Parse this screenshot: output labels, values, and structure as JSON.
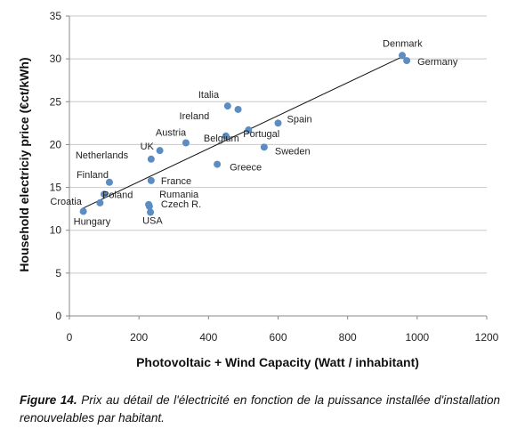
{
  "chart_data": {
    "type": "scatter",
    "xlabel": "Photovoltaic + Wind Capacity (Watt / inhabitant)",
    "ylabel": "Household electriciy price (€ct/kWh)",
    "xlim": [
      0,
      1200
    ],
    "ylim": [
      0,
      35
    ],
    "xticks": [
      0,
      200,
      400,
      600,
      800,
      1000,
      1200
    ],
    "yticks": [
      0,
      5,
      10,
      15,
      20,
      25,
      30,
      35
    ],
    "grid": "horizontal",
    "point_color": "#5b8cc2",
    "trendline": {
      "x": [
        35,
        965
      ],
      "y": [
        12.5,
        30.4
      ]
    },
    "points": [
      {
        "label": "Denmark",
        "x": 957,
        "y": 30.4
      },
      {
        "label": "Germany",
        "x": 970,
        "y": 29.8
      },
      {
        "label": "Italia",
        "x": 455,
        "y": 24.5
      },
      {
        "label": "Ireland",
        "x": 485,
        "y": 24.1
      },
      {
        "label": "Spain",
        "x": 600,
        "y": 22.5
      },
      {
        "label": "Portugal",
        "x": 515,
        "y": 21.7
      },
      {
        "label": "Belgium",
        "x": 450,
        "y": 21.0
      },
      {
        "label": "Sweden",
        "x": 560,
        "y": 19.7
      },
      {
        "label": "Austria",
        "x": 335,
        "y": 20.2
      },
      {
        "label": "UK",
        "x": 260,
        "y": 19.3
      },
      {
        "label": "Netherlands",
        "x": 235,
        "y": 18.3
      },
      {
        "label": "Greece",
        "x": 425,
        "y": 17.7
      },
      {
        "label": "Finland",
        "x": 115,
        "y": 15.6
      },
      {
        "label": "France",
        "x": 235,
        "y": 15.8
      },
      {
        "label": "Poland",
        "x": 100,
        "y": 14.2
      },
      {
        "label": "Rumania",
        "x": 228,
        "y": 13.0
      },
      {
        "label": "Czech R.",
        "x": 230,
        "y": 12.8
      },
      {
        "label": "Croatia",
        "x": 88,
        "y": 13.2
      },
      {
        "label": "USA",
        "x": 233,
        "y": 12.1
      },
      {
        "label": "Hungary",
        "x": 40,
        "y": 12.2
      }
    ]
  },
  "caption": {
    "figure_label": "Figure 14.",
    "text": "Prix au détail de l'électricité en fonction de la puissance installée d'installation renouvelables par habitant."
  }
}
